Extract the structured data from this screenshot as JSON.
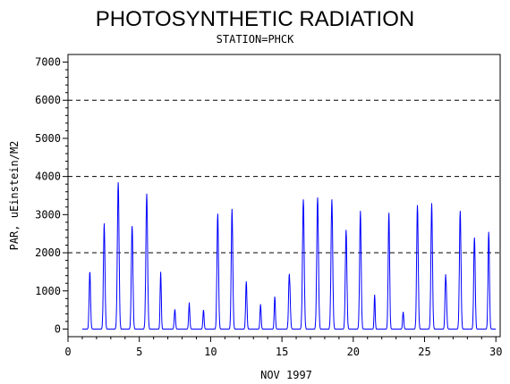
{
  "chart_data": {
    "type": "line",
    "title": "PHOTOSYNTHETIC RADIATION",
    "subtitle": "STATION=PHCK",
    "xlabel": "NOV 1997",
    "ylabel": "PAR, uEinstein/M2",
    "xlim": [
      0,
      30.3
    ],
    "ylim": [
      -200,
      7200
    ],
    "x_ticks": [
      "0",
      "5",
      "10",
      "15",
      "20",
      "25",
      "30"
    ],
    "y_ticks": [
      "0",
      "1000",
      "2000",
      "3000",
      "4000",
      "5000",
      "6000",
      "7000"
    ],
    "reference_lines": [
      2000,
      4000,
      6000
    ],
    "grid": false,
    "line_color": "#0000ff",
    "series": [
      {
        "peaks": [
          {
            "day": 1,
            "center": 0.54,
            "width": 0.11,
            "values": [
              1950,
              1500,
              900
            ]
          },
          {
            "day": 2,
            "center": 0.54,
            "width": 0.12,
            "values": [
              2950,
              2600
            ]
          },
          {
            "day": 3,
            "center": 0.52,
            "width": 0.13,
            "values": [
              3850
            ]
          },
          {
            "day": 4,
            "center": 0.5,
            "width": 0.12,
            "values": [
              3350,
              2700,
              2300
            ]
          },
          {
            "day": 5,
            "center": 0.52,
            "width": 0.13,
            "values": [
              3550
            ]
          },
          {
            "day": 6,
            "center": 0.5,
            "width": 0.09,
            "values": [
              1500
            ]
          },
          {
            "day": 7,
            "center": 0.5,
            "width": 0.1,
            "values": [
              700,
              500,
              250
            ]
          },
          {
            "day": 8,
            "center": 0.5,
            "width": 0.1,
            "values": [
              450,
              700,
              450
            ]
          },
          {
            "day": 9,
            "center": 0.5,
            "width": 0.09,
            "values": [
              500
            ]
          },
          {
            "day": 10,
            "center": 0.5,
            "width": 0.12,
            "values": [
              3100,
              2950
            ]
          },
          {
            "day": 11,
            "center": 0.5,
            "width": 0.12,
            "values": [
              3150
            ]
          },
          {
            "day": 12,
            "center": 0.5,
            "width": 0.1,
            "values": [
              1250
            ]
          },
          {
            "day": 13,
            "center": 0.5,
            "width": 0.09,
            "values": [
              650
            ]
          },
          {
            "day": 14,
            "center": 0.5,
            "width": 0.09,
            "values": [
              850
            ]
          },
          {
            "day": 15,
            "center": 0.54,
            "width": 0.12,
            "values": [
              2800,
              1300,
              850
            ]
          },
          {
            "day": 16,
            "center": 0.5,
            "width": 0.13,
            "values": [
              3400
            ]
          },
          {
            "day": 17,
            "center": 0.5,
            "width": 0.13,
            "values": [
              3450
            ]
          },
          {
            "day": 18,
            "center": 0.5,
            "width": 0.13,
            "values": [
              3400
            ]
          },
          {
            "day": 19,
            "center": 0.5,
            "width": 0.12,
            "values": [
              2700,
              2500
            ]
          },
          {
            "day": 20,
            "center": 0.5,
            "width": 0.12,
            "values": [
              3100
            ]
          },
          {
            "day": 21,
            "center": 0.5,
            "width": 0.08,
            "values": [
              950,
              850
            ]
          },
          {
            "day": 22,
            "center": 0.5,
            "width": 0.11,
            "values": [
              3200,
              2900
            ]
          },
          {
            "day": 23,
            "center": 0.5,
            "width": 0.09,
            "values": [
              450
            ]
          },
          {
            "day": 24,
            "center": 0.5,
            "width": 0.12,
            "values": [
              3250
            ]
          },
          {
            "day": 25,
            "center": 0.5,
            "width": 0.12,
            "values": [
              3300
            ]
          },
          {
            "day": 26,
            "center": 0.5,
            "width": 0.11,
            "values": [
              2700,
              1300,
              1100
            ]
          },
          {
            "day": 27,
            "center": 0.5,
            "width": 0.12,
            "values": [
              3250,
              2950
            ]
          },
          {
            "day": 28,
            "center": 0.5,
            "width": 0.11,
            "values": [
              2900,
              2400,
              2600
            ]
          },
          {
            "day": 29,
            "center": 0.5,
            "width": 0.11,
            "values": [
              2600,
              2500
            ]
          }
        ]
      }
    ]
  }
}
